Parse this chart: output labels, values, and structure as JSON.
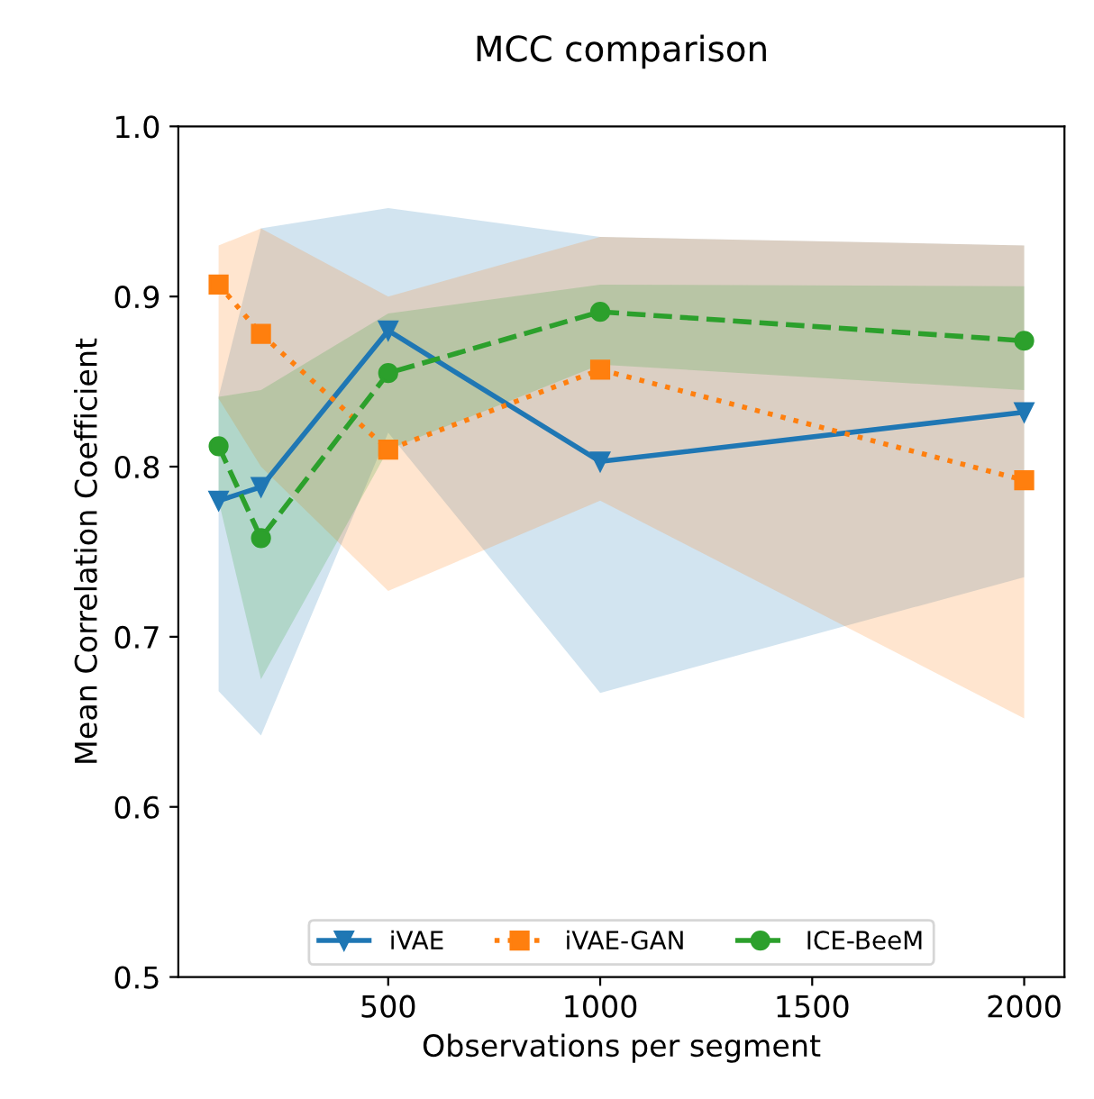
{
  "chart_data": {
    "type": "line",
    "title": "MCC comparison",
    "xlabel": "Observations per segment",
    "ylabel": "Mean Correlation Coefficient",
    "x": [
      100,
      200,
      500,
      1000,
      2000
    ],
    "series": [
      {
        "name": "iVAE",
        "color": "#1f77b4",
        "marker": "triangle",
        "line_style": "solid",
        "values": [
          0.78,
          0.788,
          0.88,
          0.803,
          0.832
        ],
        "lower": [
          0.668,
          0.642,
          0.82,
          0.667,
          0.735
        ],
        "upper": [
          0.841,
          0.94,
          0.952,
          0.935,
          0.93
        ]
      },
      {
        "name": "iVAE-GAN",
        "color": "#ff7f0e",
        "marker": "square",
        "line_style": "dotted",
        "values": [
          0.907,
          0.878,
          0.81,
          0.857,
          0.792
        ],
        "lower": [
          0.84,
          0.8,
          0.727,
          0.78,
          0.652
        ],
        "upper": [
          0.93,
          0.94,
          0.9,
          0.935,
          0.93
        ]
      },
      {
        "name": "ICE-BeeM",
        "color": "#2ca02c",
        "marker": "circle",
        "line_style": "dashed",
        "values": [
          0.812,
          0.758,
          0.855,
          0.891,
          0.874
        ],
        "lower": [
          0.78,
          0.675,
          0.81,
          0.86,
          0.845
        ],
        "upper": [
          0.841,
          0.845,
          0.89,
          0.907,
          0.906
        ]
      }
    ],
    "xlim": [
      5,
      2095
    ],
    "ylim": [
      0.5,
      1.0
    ],
    "xticks": [
      500,
      1000,
      1500,
      2000
    ],
    "yticks": [
      {
        "value": 0.5,
        "label": "0.5"
      },
      {
        "value": 0.6,
        "label": "0.6"
      },
      {
        "value": 0.7,
        "label": "0.7"
      },
      {
        "value": 0.8,
        "label": "0.8"
      },
      {
        "value": 0.9,
        "label": "0.9"
      },
      {
        "value": 1.0,
        "label": "1.0"
      }
    ],
    "grid": false,
    "legend": "bottom"
  }
}
